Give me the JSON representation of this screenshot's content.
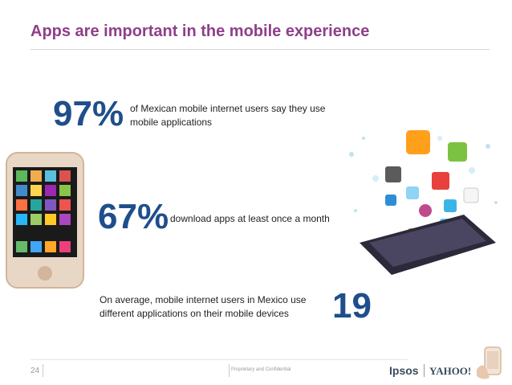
{
  "title": "Apps are important in the mobile experience",
  "stat1": {
    "value": "97%",
    "text": "of Mexican mobile internet users say they use mobile applications"
  },
  "stat2": {
    "value": "67%",
    "text": "download apps at least once a month"
  },
  "stat3": {
    "text": "On average, mobile internet users in Mexico use different applications on their mobile devices",
    "value": "19"
  },
  "footer": {
    "page_number": "24",
    "confidential": "Proprietary and Confidential",
    "logo1": "Ipsos",
    "logo2": "YAHOO!"
  },
  "colors": {
    "title": "#8e3f8a",
    "stat": "#1f4e8c"
  }
}
